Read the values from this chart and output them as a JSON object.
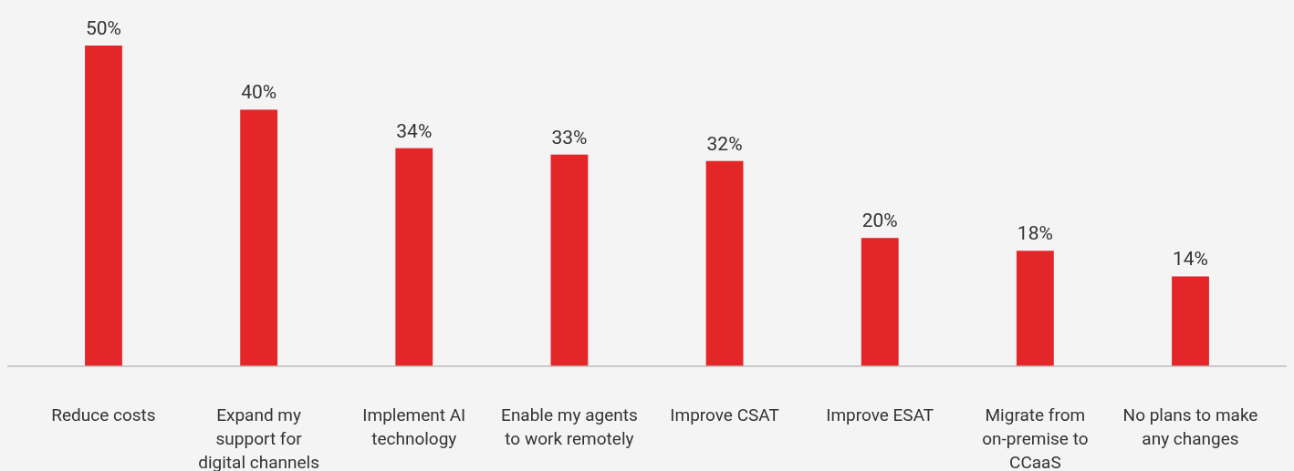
{
  "chart_data": {
    "type": "bar",
    "categories": [
      "Reduce costs",
      "Expand my support for digital channels",
      "Implement AI technology",
      "Enable my agents to work remotely",
      "Improve CSAT",
      "Improve ESAT",
      "Migrate from on-premise to CCaaS",
      "No plans to make any changes"
    ],
    "values": [
      50,
      40,
      34,
      33,
      32,
      20,
      18,
      14
    ],
    "value_labels": [
      "50%",
      "40%",
      "34%",
      "33%",
      "32%",
      "20%",
      "18%",
      "14%"
    ],
    "color": "#e52629"
  }
}
